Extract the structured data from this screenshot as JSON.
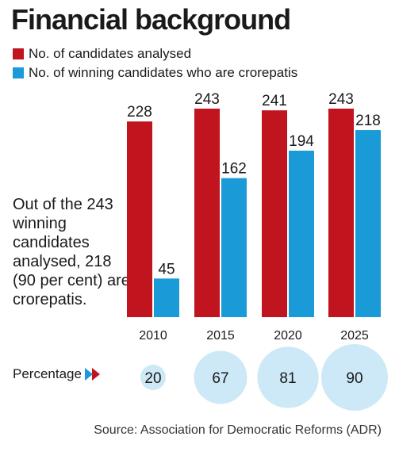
{
  "title": "Financial background",
  "note": "Out of the 243 winning candidates analysed, 218 (90 per cent) are crorepatis.",
  "percentage_label": "Percentage",
  "source": "Source: Association for Democratic Reforms (ADR)",
  "colors": {
    "red": "#c0141e",
    "blue": "#1a9ad6",
    "bubble": "#cde8f6",
    "text": "#1a1a1a"
  },
  "chart_data": {
    "type": "bar",
    "categories": [
      "2010",
      "2015",
      "2020",
      "2025"
    ],
    "series": [
      {
        "name": "No. of candidates analysed",
        "values": [
          228,
          243,
          241,
          243
        ],
        "color": "#c0141e"
      },
      {
        "name": "No. of winning candidates who are crorepatis",
        "values": [
          45,
          162,
          194,
          218
        ],
        "color": "#1a9ad6"
      }
    ],
    "percentages": [
      20,
      67,
      81,
      90
    ],
    "ylim": [
      0,
      243
    ],
    "grid": false,
    "legend": "top-left"
  }
}
